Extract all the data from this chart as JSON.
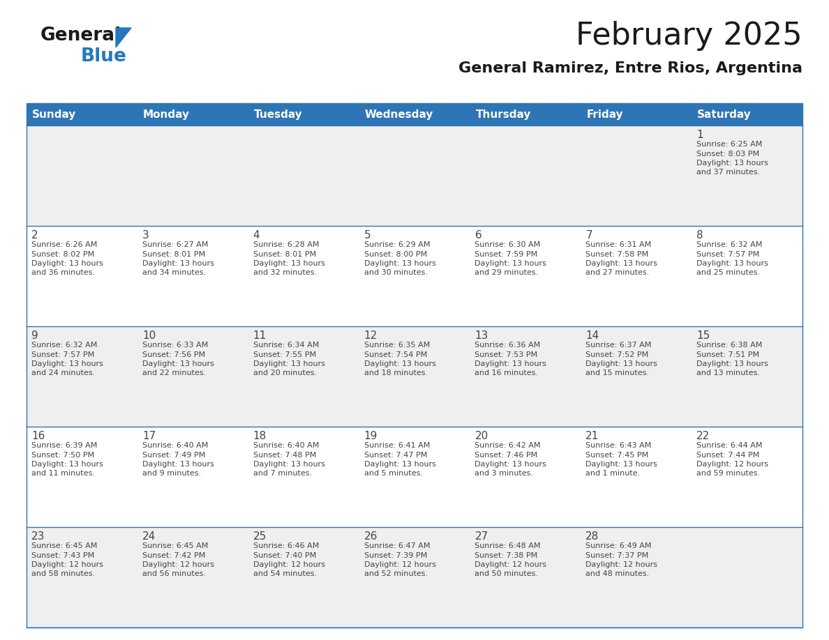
{
  "title": "February 2025",
  "subtitle": "General Ramirez, Entre Rios, Argentina",
  "header_bg": "#2E75B6",
  "header_text_color": "#FFFFFF",
  "cell_bg_row0": "#EFEFEF",
  "cell_bg_row1": "#FFFFFF",
  "cell_bg_row2": "#EFEFEF",
  "cell_bg_row3": "#FFFFFF",
  "cell_bg_row4": "#EFEFEF",
  "border_color": "#2E75B6",
  "text_color": "#444444",
  "days_of_week": [
    "Sunday",
    "Monday",
    "Tuesday",
    "Wednesday",
    "Thursday",
    "Friday",
    "Saturday"
  ],
  "calendar_data": [
    [
      null,
      null,
      null,
      null,
      null,
      null,
      {
        "day": "1",
        "sunrise": "6:25 AM",
        "sunset": "8:03 PM",
        "daylight": "13 hours\nand 37 minutes."
      }
    ],
    [
      {
        "day": "2",
        "sunrise": "6:26 AM",
        "sunset": "8:02 PM",
        "daylight": "13 hours\nand 36 minutes."
      },
      {
        "day": "3",
        "sunrise": "6:27 AM",
        "sunset": "8:01 PM",
        "daylight": "13 hours\nand 34 minutes."
      },
      {
        "day": "4",
        "sunrise": "6:28 AM",
        "sunset": "8:01 PM",
        "daylight": "13 hours\nand 32 minutes."
      },
      {
        "day": "5",
        "sunrise": "6:29 AM",
        "sunset": "8:00 PM",
        "daylight": "13 hours\nand 30 minutes."
      },
      {
        "day": "6",
        "sunrise": "6:30 AM",
        "sunset": "7:59 PM",
        "daylight": "13 hours\nand 29 minutes."
      },
      {
        "day": "7",
        "sunrise": "6:31 AM",
        "sunset": "7:58 PM",
        "daylight": "13 hours\nand 27 minutes."
      },
      {
        "day": "8",
        "sunrise": "6:32 AM",
        "sunset": "7:57 PM",
        "daylight": "13 hours\nand 25 minutes."
      }
    ],
    [
      {
        "day": "9",
        "sunrise": "6:32 AM",
        "sunset": "7:57 PM",
        "daylight": "13 hours\nand 24 minutes."
      },
      {
        "day": "10",
        "sunrise": "6:33 AM",
        "sunset": "7:56 PM",
        "daylight": "13 hours\nand 22 minutes."
      },
      {
        "day": "11",
        "sunrise": "6:34 AM",
        "sunset": "7:55 PM",
        "daylight": "13 hours\nand 20 minutes."
      },
      {
        "day": "12",
        "sunrise": "6:35 AM",
        "sunset": "7:54 PM",
        "daylight": "13 hours\nand 18 minutes."
      },
      {
        "day": "13",
        "sunrise": "6:36 AM",
        "sunset": "7:53 PM",
        "daylight": "13 hours\nand 16 minutes."
      },
      {
        "day": "14",
        "sunrise": "6:37 AM",
        "sunset": "7:52 PM",
        "daylight": "13 hours\nand 15 minutes."
      },
      {
        "day": "15",
        "sunrise": "6:38 AM",
        "sunset": "7:51 PM",
        "daylight": "13 hours\nand 13 minutes."
      }
    ],
    [
      {
        "day": "16",
        "sunrise": "6:39 AM",
        "sunset": "7:50 PM",
        "daylight": "13 hours\nand 11 minutes."
      },
      {
        "day": "17",
        "sunrise": "6:40 AM",
        "sunset": "7:49 PM",
        "daylight": "13 hours\nand 9 minutes."
      },
      {
        "day": "18",
        "sunrise": "6:40 AM",
        "sunset": "7:48 PM",
        "daylight": "13 hours\nand 7 minutes."
      },
      {
        "day": "19",
        "sunrise": "6:41 AM",
        "sunset": "7:47 PM",
        "daylight": "13 hours\nand 5 minutes."
      },
      {
        "day": "20",
        "sunrise": "6:42 AM",
        "sunset": "7:46 PM",
        "daylight": "13 hours\nand 3 minutes."
      },
      {
        "day": "21",
        "sunrise": "6:43 AM",
        "sunset": "7:45 PM",
        "daylight": "13 hours\nand 1 minute."
      },
      {
        "day": "22",
        "sunrise": "6:44 AM",
        "sunset": "7:44 PM",
        "daylight": "12 hours\nand 59 minutes."
      }
    ],
    [
      {
        "day": "23",
        "sunrise": "6:45 AM",
        "sunset": "7:43 PM",
        "daylight": "12 hours\nand 58 minutes."
      },
      {
        "day": "24",
        "sunrise": "6:45 AM",
        "sunset": "7:42 PM",
        "daylight": "12 hours\nand 56 minutes."
      },
      {
        "day": "25",
        "sunrise": "6:46 AM",
        "sunset": "7:40 PM",
        "daylight": "12 hours\nand 54 minutes."
      },
      {
        "day": "26",
        "sunrise": "6:47 AM",
        "sunset": "7:39 PM",
        "daylight": "12 hours\nand 52 minutes."
      },
      {
        "day": "27",
        "sunrise": "6:48 AM",
        "sunset": "7:38 PM",
        "daylight": "12 hours\nand 50 minutes."
      },
      {
        "day": "28",
        "sunrise": "6:49 AM",
        "sunset": "7:37 PM",
        "daylight": "12 hours\nand 48 minutes."
      },
      null
    ]
  ],
  "logo_color_general": "#1a1a1a",
  "logo_color_blue": "#2479BD",
  "logo_triangle_color": "#2479BD",
  "title_fontsize": 32,
  "subtitle_fontsize": 16,
  "header_fontsize": 11,
  "day_num_fontsize": 11,
  "cell_text_fontsize": 8
}
